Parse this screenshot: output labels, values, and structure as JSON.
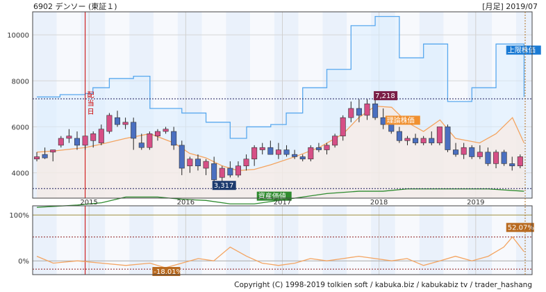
{
  "header": {
    "title": "6902 デンソー (東証１)",
    "period": "[月足] 2019/07"
  },
  "footer": {
    "copyright": "Copyright (C) 1998-2019 tolkien soft / kabuka.biz / kabukabiz tv / trader_hashang"
  },
  "colors": {
    "up": "#d64f86",
    "down": "#4a6fc0",
    "upper_limit": "#58a8ee",
    "theory": "#f4a460",
    "asset": "#2e8b2e",
    "rate": "#f4a460",
    "vline": "#cc0000"
  },
  "chart_data": [
    {
      "type": "candlestick",
      "title": "",
      "ylim": [
        2900,
        11000
      ],
      "yticks": [
        4000,
        6000,
        8000,
        10000
      ],
      "xticks": [
        {
          "label": "2015",
          "x": 2015.0
        },
        {
          "label": "2016",
          "x": 2016.0
        },
        {
          "label": "2017",
          "x": 2017.0
        },
        {
          "label": "2018",
          "x": 2018.0
        },
        {
          "label": "2019",
          "x": 2019.0
        }
      ],
      "event_marker": {
        "x": 2014.96,
        "label": "配当日"
      },
      "candles_start": 2014.46,
      "candles": [
        [
          4600,
          4900,
          4500,
          4700
        ],
        [
          4800,
          5100,
          4600,
          4650
        ],
        [
          4900,
          5000,
          4500,
          5000
        ],
        [
          5200,
          5600,
          5100,
          5500
        ],
        [
          5500,
          5900,
          5300,
          5600
        ],
        [
          5500,
          5800,
          5000,
          5200
        ],
        [
          5200,
          5600,
          5000,
          5600
        ],
        [
          5400,
          5800,
          5100,
          5700
        ],
        [
          5300,
          6100,
          5200,
          5900
        ],
        [
          5800,
          6600,
          5700,
          6500
        ],
        [
          6400,
          6700,
          6000,
          6100
        ],
        [
          6100,
          6400,
          5900,
          6200
        ],
        [
          6200,
          6400,
          5000,
          5500
        ],
        [
          5300,
          5700,
          5000,
          5100
        ],
        [
          5100,
          5800,
          5000,
          5700
        ],
        [
          5600,
          5900,
          5400,
          5800
        ],
        [
          5800,
          6000,
          5700,
          5900
        ],
        [
          5800,
          6000,
          5000,
          5200
        ],
        [
          5200,
          5400,
          3900,
          4200
        ],
        [
          4300,
          4700,
          4000,
          4600
        ],
        [
          4600,
          4800,
          4100,
          4300
        ],
        [
          4200,
          4600,
          3900,
          4500
        ],
        [
          4400,
          4700,
          3400,
          3700
        ],
        [
          3800,
          4300,
          3300,
          4200
        ],
        [
          4200,
          4500,
          3800,
          3900
        ],
        [
          3900,
          4500,
          3800,
          4300
        ],
        [
          4300,
          4800,
          4100,
          4600
        ],
        [
          4600,
          5200,
          4300,
          5100
        ],
        [
          5000,
          5300,
          4800,
          5100
        ],
        [
          5100,
          5400,
          4800,
          4800
        ],
        [
          4800,
          5300,
          4600,
          5000
        ],
        [
          5000,
          5200,
          4700,
          4800
        ],
        [
          4800,
          5000,
          4600,
          4700
        ],
        [
          4700,
          4800,
          4500,
          4600
        ],
        [
          4600,
          5200,
          4500,
          5100
        ],
        [
          5100,
          5300,
          4900,
          5000
        ],
        [
          5000,
          5300,
          4800,
          5200
        ],
        [
          5200,
          5700,
          5100,
          5600
        ],
        [
          5600,
          6500,
          5400,
          6400
        ],
        [
          6400,
          7100,
          6200,
          6800
        ],
        [
          6800,
          7200,
          6200,
          6500
        ],
        [
          6500,
          7200,
          6300,
          7000
        ],
        [
          7000,
          7218,
          6300,
          6400
        ],
        [
          6400,
          6800,
          5900,
          6100
        ],
        [
          6100,
          6200,
          5700,
          5800
        ],
        [
          5800,
          6000,
          5300,
          5400
        ],
        [
          5400,
          5600,
          5200,
          5500
        ],
        [
          5500,
          5700,
          5200,
          5300
        ],
        [
          5300,
          5600,
          5200,
          5500
        ],
        [
          5500,
          5800,
          5200,
          5300
        ],
        [
          5300,
          6000,
          5200,
          6000
        ],
        [
          6000,
          6100,
          4900,
          5000
        ],
        [
          5000,
          5300,
          4700,
          4800
        ],
        [
          4800,
          5300,
          4600,
          5100
        ],
        [
          5100,
          5200,
          4600,
          4700
        ],
        [
          4700,
          5200,
          4600,
          4900
        ],
        [
          4900,
          5100,
          4300,
          4400
        ],
        [
          4400,
          5000,
          4200,
          4900
        ],
        [
          4900,
          5000,
          4300,
          4400
        ],
        [
          4400,
          4700,
          4100,
          4300
        ],
        [
          4300,
          4800,
          4200,
          4700
        ]
      ],
      "series": [
        {
          "label": "上限株価",
          "interp": "step",
          "points": [
            [
              2014.46,
              7300
            ],
            [
              2014.7,
              7400
            ],
            [
              2014.96,
              7450
            ],
            [
              2015.04,
              7700
            ],
            [
              2015.21,
              8100
            ],
            [
              2015.46,
              8200
            ],
            [
              2015.63,
              6800
            ],
            [
              2015.96,
              6600
            ],
            [
              2016.21,
              6200
            ],
            [
              2016.46,
              5500
            ],
            [
              2016.63,
              6000
            ],
            [
              2016.88,
              6100
            ],
            [
              2017.04,
              6600
            ],
            [
              2017.21,
              7700
            ],
            [
              2017.46,
              8500
            ],
            [
              2017.71,
              10400
            ],
            [
              2017.96,
              10800
            ],
            [
              2018.21,
              9000
            ],
            [
              2018.46,
              9600
            ],
            [
              2018.71,
              7100
            ],
            [
              2018.96,
              7700
            ],
            [
              2019.21,
              9600
            ],
            [
              2019.5,
              7300
            ]
          ]
        },
        {
          "label": "理論株価",
          "interp": "linear",
          "points": [
            [
              2014.46,
              4900
            ],
            [
              2014.63,
              4950
            ],
            [
              2014.96,
              5100
            ],
            [
              2015.13,
              5250
            ],
            [
              2015.38,
              5500
            ],
            [
              2015.63,
              5700
            ],
            [
              2015.88,
              5300
            ],
            [
              2016.04,
              4850
            ],
            [
              2016.21,
              4650
            ],
            [
              2016.38,
              4300
            ],
            [
              2016.54,
              4100
            ],
            [
              2016.71,
              4150
            ],
            [
              2016.88,
              4350
            ],
            [
              2017.13,
              4700
            ],
            [
              2017.38,
              5100
            ],
            [
              2017.63,
              5700
            ],
            [
              2017.79,
              6400
            ],
            [
              2017.96,
              6900
            ],
            [
              2018.13,
              6850
            ],
            [
              2018.29,
              6200
            ],
            [
              2018.46,
              5800
            ],
            [
              2018.63,
              6300
            ],
            [
              2018.79,
              5500
            ],
            [
              2019.04,
              5300
            ],
            [
              2019.21,
              5700
            ],
            [
              2019.38,
              6400
            ],
            [
              2019.5,
              5300
            ]
          ]
        },
        {
          "label": "資産価値",
          "interp": "linear",
          "points": [
            [
              2014.46,
              2500
            ],
            [
              2014.88,
              2600
            ],
            [
              2015.13,
              2700
            ],
            [
              2015.38,
              2950
            ],
            [
              2015.71,
              2950
            ],
            [
              2015.96,
              2850
            ],
            [
              2016.21,
              2800
            ],
            [
              2016.46,
              2650
            ],
            [
              2016.71,
              2650
            ],
            [
              2016.96,
              2800
            ],
            [
              2017.13,
              2900
            ],
            [
              2017.46,
              3100
            ],
            [
              2017.79,
              3200
            ],
            [
              2018.04,
              3200
            ],
            [
              2018.29,
              3300
            ],
            [
              2018.54,
              3300
            ],
            [
              2018.79,
              3300
            ],
            [
              2019.13,
              3300
            ],
            [
              2019.5,
              3200
            ]
          ]
        }
      ],
      "hlines": [
        {
          "value": 7218,
          "label": "7,218"
        },
        {
          "value": 3317,
          "label": "3,317"
        }
      ],
      "labels": [
        {
          "text": "7,218",
          "x": 2017.96,
          "y": 7218
        },
        {
          "text": "3,317",
          "x": 2016.29,
          "y": 3317
        },
        {
          "text": "理論株価",
          "x": 2018.08,
          "y": 6150
        },
        {
          "text": "上限株価",
          "x": 2019.33,
          "y": 9200
        },
        {
          "text": "資産価値",
          "x": 2016.75,
          "y": 2850
        }
      ]
    },
    {
      "type": "line",
      "title": "",
      "ylim": [
        -30,
        120
      ],
      "yticks": [
        {
          "label": "100%",
          "value": 100
        },
        {
          "label": "0%",
          "value": 0
        }
      ],
      "hlines": [
        {
          "value": 100
        },
        {
          "value": 52.07
        },
        {
          "value": -18.01
        }
      ],
      "series": [
        {
          "name": "",
          "points": [
            [
              2014.46,
              10
            ],
            [
              2014.63,
              -5
            ],
            [
              2014.88,
              0
            ],
            [
              2015.13,
              -5
            ],
            [
              2015.38,
              -10
            ],
            [
              2015.63,
              -5
            ],
            [
              2015.79,
              -15
            ],
            [
              2015.96,
              -5
            ],
            [
              2016.13,
              5
            ],
            [
              2016.29,
              0
            ],
            [
              2016.46,
              30
            ],
            [
              2016.63,
              10
            ],
            [
              2016.79,
              -5
            ],
            [
              2016.96,
              -10
            ],
            [
              2017.13,
              -5
            ],
            [
              2017.29,
              5
            ],
            [
              2017.46,
              0
            ],
            [
              2017.63,
              5
            ],
            [
              2017.79,
              10
            ],
            [
              2017.96,
              5
            ],
            [
              2018.13,
              0
            ],
            [
              2018.29,
              5
            ],
            [
              2018.46,
              -10
            ],
            [
              2018.63,
              0
            ],
            [
              2018.79,
              10
            ],
            [
              2018.96,
              0
            ],
            [
              2019.13,
              10
            ],
            [
              2019.29,
              30
            ],
            [
              2019.38,
              52.07
            ],
            [
              2019.5,
              20
            ]
          ]
        }
      ],
      "labels": [
        {
          "text": "52.07%",
          "x": 2019.33,
          "y": 66
        },
        {
          "text": "-18.01%",
          "x": 2015.67,
          "y": -30
        }
      ]
    }
  ]
}
